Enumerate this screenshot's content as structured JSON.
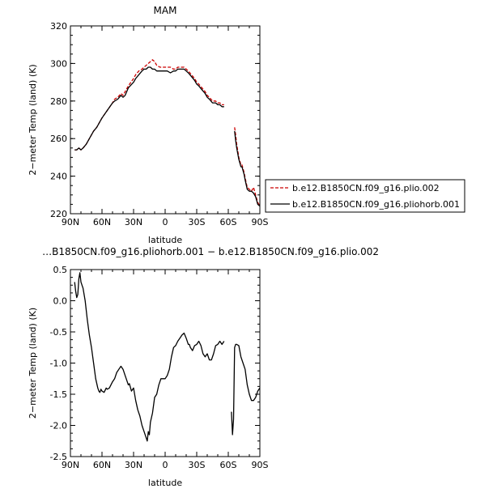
{
  "chart_data": [
    {
      "type": "line",
      "title": "MAM",
      "xlabel": "latitude",
      "ylabel": "2−meter Temp (land) (K)",
      "xlim": [
        90,
        -90
      ],
      "ylim": [
        220,
        320
      ],
      "x_ticks": [
        "90N",
        "60N",
        "30N",
        "0",
        "30S",
        "60S",
        "90S"
      ],
      "y_ticks": [
        "220",
        "240",
        "260",
        "280",
        "300",
        "320"
      ],
      "legend_position": "right",
      "series": [
        {
          "name": "b.e12.B1850CN.f09_g16.plio.002",
          "color": "#cc0000",
          "dash": "dashed",
          "segments": [
            {
              "x": [
                86,
                84,
                82,
                80,
                78,
                75,
                72,
                70,
                68,
                65,
                62,
                60,
                55,
                50,
                48,
                45,
                42,
                40,
                38,
                35,
                30,
                28,
                25,
                22,
                20,
                18,
                16,
                14,
                12,
                10,
                8,
                5,
                2,
                0,
                -2,
                -5,
                -8,
                -10,
                -12,
                -15,
                -18,
                -20,
                -22,
                -25,
                -28,
                -30,
                -32,
                -35,
                -38,
                -40,
                -42,
                -45,
                -48,
                -50,
                -52,
                -54,
                -56
              ],
              "y": [
                254,
                254,
                255,
                254,
                255,
                257,
                260,
                262,
                264,
                266,
                269,
                271,
                275,
                279,
                281,
                282,
                284,
                283,
                285,
                288,
                292,
                294,
                296,
                297,
                298,
                299,
                300,
                301,
                302,
                301,
                299,
                298,
                298,
                298,
                298,
                298,
                297,
                297,
                298,
                298,
                298,
                297,
                296,
                294,
                292,
                290,
                289,
                287,
                285,
                283,
                282,
                280,
                280,
                279,
                279,
                278,
                278
              ]
            },
            {
              "x": [
                -66,
                -67,
                -68,
                -70,
                -72,
                -73,
                -75,
                -76,
                -78,
                -80,
                -82,
                -84,
                -86,
                -88,
                -90
              ],
              "y": [
                266,
                262,
                257,
                250,
                246,
                246,
                242,
                239,
                234,
                233,
                232,
                234,
                230,
                226,
                224
              ]
            }
          ]
        },
        {
          "name": "b.e12.B1850CN.f09_g16.pliohorb.001",
          "color": "#000000",
          "dash": "solid",
          "segments": [
            {
              "x": [
                86,
                84,
                82,
                80,
                78,
                75,
                72,
                70,
                68,
                65,
                62,
                60,
                55,
                50,
                48,
                45,
                42,
                40,
                38,
                35,
                30,
                28,
                25,
                22,
                20,
                18,
                16,
                14,
                12,
                10,
                8,
                5,
                2,
                0,
                -2,
                -5,
                -8,
                -10,
                -12,
                -15,
                -18,
                -20,
                -22,
                -25,
                -28,
                -30,
                -32,
                -35,
                -38,
                -40,
                -42,
                -45,
                -48,
                -50,
                -52,
                -54,
                -56
              ],
              "y": [
                254,
                254,
                255,
                254,
                255,
                257,
                260,
                262,
                264,
                266,
                269,
                271,
                275,
                279,
                280,
                281,
                283,
                282,
                283,
                287,
                290,
                292,
                294,
                296,
                297,
                297,
                298,
                298,
                297,
                297,
                296,
                296,
                296,
                296,
                296,
                295,
                296,
                296,
                297,
                297,
                297,
                296,
                295,
                293,
                291,
                289,
                288,
                286,
                284,
                282,
                281,
                279,
                279,
                278,
                278,
                277,
                277
              ]
            },
            {
              "x": [
                -66,
                -67,
                -68,
                -70,
                -72,
                -73,
                -75,
                -76,
                -78,
                -80,
                -82,
                -84,
                -86,
                -88,
                -90
              ],
              "y": [
                264,
                259,
                255,
                249,
                245,
                245,
                241,
                238,
                233,
                232,
                232,
                231,
                229,
                225,
                224
              ]
            }
          ]
        }
      ]
    },
    {
      "type": "line",
      "title": "…B1850CN.f09_g16.pliohorb.001 − b.e12.B1850CN.f09_g16.plio.002",
      "xlabel": "latitude",
      "ylabel": "2−meter Temp (land) (K)",
      "xlim": [
        90,
        -90
      ],
      "ylim": [
        -2.5,
        0.5
      ],
      "x_ticks": [
        "90N",
        "60N",
        "30N",
        "0",
        "30S",
        "60S",
        "90S"
      ],
      "y_ticks": [
        "-2.5",
        "-2.0",
        "-1.5",
        "-1.0",
        "-0.5",
        "0.0",
        "0.5"
      ],
      "series": [
        {
          "name": "",
          "color": "#000000",
          "dash": "solid",
          "segments": [
            {
              "x": [
                86,
                85,
                84,
                83,
                82,
                81,
                80,
                79,
                78,
                76,
                74,
                72,
                70,
                68,
                66,
                64,
                63,
                62,
                61,
                60,
                58,
                56,
                55,
                53,
                50,
                48,
                46,
                44,
                42,
                40,
                38,
                36,
                35,
                34,
                32,
                30,
                28,
                26,
                24,
                22,
                20,
                18,
                17,
                16,
                15,
                14,
                12,
                10,
                8,
                6,
                4,
                2,
                0,
                -2,
                -4,
                -6,
                -8,
                -10,
                -12,
                -14,
                -16,
                -18,
                -20,
                -22,
                -23,
                -24,
                -26,
                -28,
                -30,
                -32,
                -34,
                -36,
                -38,
                -40,
                -42,
                -44,
                -46,
                -48,
                -50,
                -52,
                -54,
                -56
              ],
              "y": [
                0.3,
                0.15,
                0.05,
                0.1,
                0.35,
                0.45,
                0.3,
                0.25,
                0.2,
                0.0,
                -0.3,
                -0.55,
                -0.75,
                -1.0,
                -1.25,
                -1.4,
                -1.45,
                -1.47,
                -1.42,
                -1.45,
                -1.47,
                -1.4,
                -1.42,
                -1.4,
                -1.3,
                -1.25,
                -1.15,
                -1.1,
                -1.05,
                -1.1,
                -1.2,
                -1.3,
                -1.35,
                -1.33,
                -1.45,
                -1.4,
                -1.6,
                -1.75,
                -1.85,
                -2.0,
                -2.1,
                -2.2,
                -2.25,
                -2.1,
                -2.15,
                -1.95,
                -1.8,
                -1.55,
                -1.5,
                -1.35,
                -1.25,
                -1.25,
                -1.25,
                -1.2,
                -1.1,
                -0.9,
                -0.75,
                -0.72,
                -0.65,
                -0.6,
                -0.55,
                -0.52,
                -0.6,
                -0.7,
                -0.7,
                -0.75,
                -0.8,
                -0.72,
                -0.7,
                -0.65,
                -0.72,
                -0.85,
                -0.9,
                -0.85,
                -0.95,
                -0.95,
                -0.85,
                -0.72,
                -0.7,
                -0.65,
                -0.7,
                -0.65
              ]
            },
            {
              "x": [
                -63,
                -64,
                -65,
                -66,
                -67,
                -68,
                -70,
                -72,
                -74,
                -76,
                -78,
                -80,
                -82,
                -84,
                -86,
                -88,
                -90
              ],
              "y": [
                -1.78,
                -2.15,
                -1.9,
                -0.75,
                -0.7,
                -0.7,
                -0.72,
                -0.9,
                -1.0,
                -1.1,
                -1.35,
                -1.5,
                -1.6,
                -1.6,
                -1.55,
                -1.45,
                -1.4
              ]
            }
          ]
        }
      ]
    }
  ]
}
